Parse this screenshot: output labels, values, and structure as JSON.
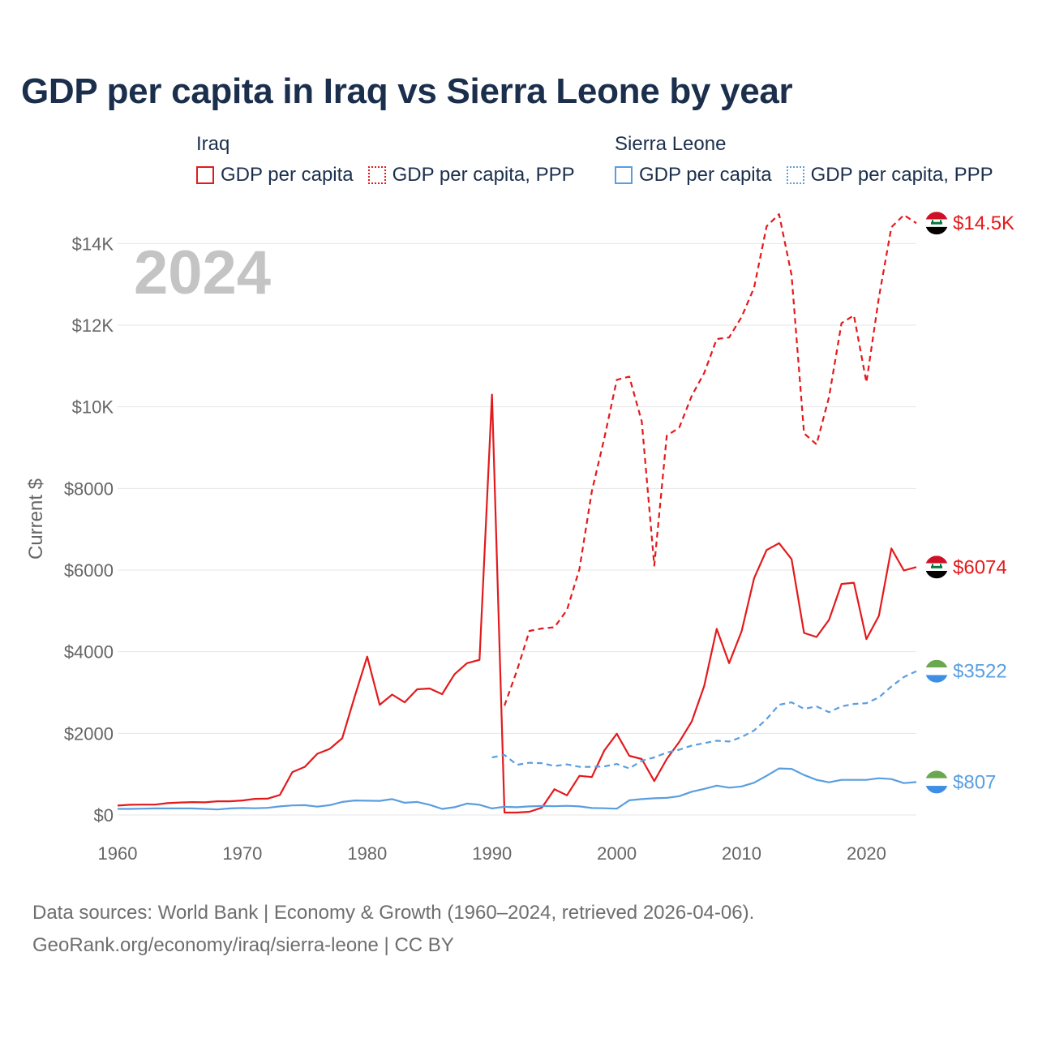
{
  "title": "GDP per capita in Iraq vs Sierra Leone by year",
  "year_watermark": "2024",
  "legend": {
    "iraq": {
      "country": "Iraq",
      "items": [
        {
          "label": "GDP per capita",
          "style": "solid",
          "color": "#e31a1c"
        },
        {
          "label": "GDP per capita, PPP",
          "style": "dotted",
          "color": "#e31a1c"
        }
      ]
    },
    "sierra_leone": {
      "country": "Sierra Leone",
      "items": [
        {
          "label": "GDP per capita",
          "style": "solid",
          "color": "#5a9ee0"
        },
        {
          "label": "GDP per capita, PPP",
          "style": "dotted",
          "color": "#5a9ee0"
        }
      ]
    }
  },
  "end_labels": [
    {
      "series": "Iraq GDP per capita, PPP",
      "text": "$14.5K",
      "color": "#e31a1c",
      "flag": "iraq-flag-icon"
    },
    {
      "series": "Iraq GDP per capita",
      "text": "$6074",
      "color": "#e31a1c",
      "flag": "iraq-flag-icon"
    },
    {
      "series": "Sierra Leone GDP per capita, PPP",
      "text": "$3522",
      "color": "#5a9ee0",
      "flag": "sierra-leone-flag-icon"
    },
    {
      "series": "Sierra Leone GDP per capita",
      "text": "$807",
      "color": "#5a9ee0",
      "flag": "sierra-leone-flag-icon"
    }
  ],
  "footer": {
    "line1": "Data sources: World Bank | Economy & Growth (1960–2024, retrieved 2026-04-06).",
    "line2": "GeoRank.org/economy/iraq/sierra-leone | CC BY"
  },
  "chart_data": {
    "type": "line",
    "title": "GDP per capita in Iraq vs Sierra Leone by year",
    "xlabel": "",
    "ylabel": "Current $",
    "xlim": [
      1960,
      2024
    ],
    "ylim": [
      0,
      15000
    ],
    "x_ticks": [
      1960,
      1970,
      1980,
      1990,
      2000,
      2010,
      2020
    ],
    "x_tick_labels": [
      "1960",
      "1970",
      "1980",
      "1990",
      "2000",
      "2010",
      "2020"
    ],
    "y_ticks": [
      0,
      2000,
      4000,
      6000,
      8000,
      10000,
      12000,
      14000
    ],
    "y_tick_labels": [
      "$0",
      "$2000",
      "$4000",
      "$6000",
      "$8000",
      "$10K",
      "$12K",
      "$14K"
    ],
    "grid": true,
    "legend_position": "top",
    "series": [
      {
        "name": "Iraq GDP per capita",
        "color": "#e31a1c",
        "dash": "solid",
        "x": [
          1960,
          1961,
          1962,
          1963,
          1964,
          1965,
          1966,
          1967,
          1968,
          1969,
          1970,
          1971,
          1972,
          1973,
          1974,
          1975,
          1976,
          1977,
          1978,
          1979,
          1980,
          1981,
          1982,
          1983,
          1984,
          1985,
          1986,
          1987,
          1988,
          1989,
          1990,
          1991,
          1992,
          1993,
          1994,
          1995,
          1996,
          1997,
          1998,
          1999,
          2000,
          2001,
          2002,
          2003,
          2004,
          2005,
          2006,
          2007,
          2008,
          2009,
          2010,
          2011,
          2012,
          2013,
          2014,
          2015,
          2016,
          2017,
          2018,
          2019,
          2020,
          2021,
          2022,
          2023,
          2024
        ],
        "values": [
          230,
          250,
          255,
          255,
          290,
          305,
          315,
          310,
          335,
          335,
          355,
          395,
          400,
          490,
          1050,
          1180,
          1500,
          1620,
          1880,
          2900,
          3880,
          2700,
          2950,
          2760,
          3080,
          3100,
          2960,
          3450,
          3720,
          3800,
          10300,
          60,
          60,
          80,
          180,
          630,
          480,
          960,
          930,
          1580,
          1990,
          1450,
          1370,
          830,
          1370,
          1790,
          2290,
          3160,
          4560,
          3720,
          4500,
          5800,
          6490,
          6660,
          6270,
          4460,
          4360,
          4780,
          5660,
          5690,
          4310,
          4880,
          6530,
          5990,
          6074
        ]
      },
      {
        "name": "Iraq GDP per capita, PPP",
        "color": "#e31a1c",
        "dash": "dashed",
        "x": [
          1991,
          1992,
          1993,
          1994,
          1995,
          1996,
          1997,
          1998,
          1999,
          2000,
          2001,
          2002,
          2003,
          2004,
          2005,
          2006,
          2007,
          2008,
          2009,
          2010,
          2011,
          2012,
          2013,
          2014,
          2015,
          2016,
          2017,
          2018,
          2019,
          2020,
          2021,
          2022,
          2023,
          2024
        ],
        "values": [
          2680,
          3540,
          4510,
          4570,
          4600,
          5020,
          6020,
          7930,
          9230,
          10660,
          10740,
          9640,
          6110,
          9290,
          9490,
          10270,
          10830,
          11660,
          11700,
          12200,
          12920,
          14420,
          14720,
          13230,
          9350,
          9080,
          10240,
          12050,
          12240,
          10600,
          12680,
          14400,
          14700,
          14500
        ]
      },
      {
        "name": "Sierra Leone GDP per capita",
        "color": "#5a9ee0",
        "dash": "solid",
        "x": [
          1960,
          1961,
          1962,
          1963,
          1964,
          1965,
          1966,
          1967,
          1968,
          1969,
          1970,
          1971,
          1972,
          1973,
          1974,
          1975,
          1976,
          1977,
          1978,
          1979,
          1980,
          1981,
          1982,
          1983,
          1984,
          1985,
          1986,
          1987,
          1988,
          1989,
          1990,
          1991,
          1992,
          1993,
          1994,
          1995,
          1996,
          1997,
          1998,
          1999,
          2000,
          2001,
          2002,
          2003,
          2004,
          2005,
          2006,
          2007,
          2008,
          2009,
          2010,
          2011,
          2012,
          2013,
          2014,
          2015,
          2016,
          2017,
          2018,
          2019,
          2020,
          2021,
          2022,
          2023,
          2024
        ],
        "values": [
          150,
          150,
          155,
          160,
          160,
          160,
          160,
          150,
          135,
          160,
          170,
          165,
          175,
          210,
          235,
          240,
          205,
          240,
          320,
          355,
          350,
          345,
          390,
          300,
          320,
          250,
          150,
          190,
          280,
          250,
          160,
          200,
          190,
          210,
          220,
          215,
          225,
          210,
          170,
          165,
          155,
          360,
          390,
          410,
          420,
          460,
          570,
          640,
          720,
          670,
          700,
          790,
          960,
          1140,
          1130,
          980,
          860,
          800,
          860,
          860,
          860,
          900,
          880,
          780,
          807
        ]
      },
      {
        "name": "Sierra Leone GDP per capita, PPP",
        "color": "#5a9ee0",
        "dash": "dashed",
        "x": [
          1990,
          1991,
          1992,
          1993,
          1994,
          1995,
          1996,
          1997,
          1998,
          1999,
          2000,
          2001,
          2002,
          2003,
          2004,
          2005,
          2006,
          2007,
          2008,
          2009,
          2010,
          2011,
          2012,
          2013,
          2014,
          2015,
          2016,
          2017,
          2018,
          2019,
          2020,
          2021,
          2022,
          2023,
          2024
        ],
        "values": [
          1410,
          1470,
          1230,
          1280,
          1270,
          1200,
          1240,
          1180,
          1180,
          1190,
          1250,
          1140,
          1330,
          1410,
          1530,
          1600,
          1700,
          1760,
          1820,
          1800,
          1910,
          2070,
          2350,
          2700,
          2760,
          2600,
          2660,
          2520,
          2660,
          2720,
          2740,
          2880,
          3150,
          3380,
          3522
        ]
      }
    ]
  }
}
